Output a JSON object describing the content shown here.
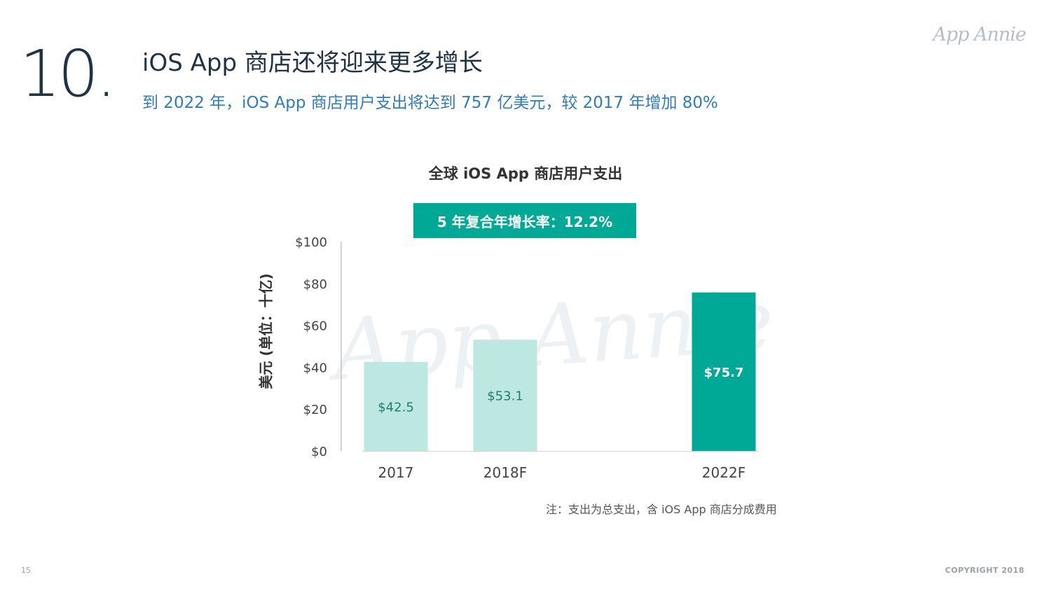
{
  "slide": {
    "number": "10.",
    "title": "iOS App 商店还将迎来更多增长",
    "subtitle": "到 2022 年，iOS App 商店用户支出将达到 757 亿美元，较 2017 年增加 80%",
    "logo": "App Annie",
    "watermark": "App Annie",
    "note": "注：支出为总支出，含 iOS App 商店分成费用",
    "page_number": "15",
    "copyright": "COPYRIGHT 2018"
  },
  "colors": {
    "title": "#1f3345",
    "subtitle": "#2f7bbf",
    "bar_light": "#bde7e1",
    "bar_dark": "#00a896",
    "label_dark_text": "#1e7f71",
    "label_light_text": "#ffffff"
  },
  "chart_data": {
    "type": "bar",
    "title": "全球 iOS App 商店用户支出",
    "callout": "5 年复合年增长率：12.2%",
    "ylabel": "美元 (单位：十亿)",
    "xlabel": "",
    "ylim": [
      0,
      100
    ],
    "yticks": [
      0,
      20,
      40,
      60,
      80,
      100
    ],
    "ytick_labels": [
      "$0",
      "$20",
      "$40",
      "$60",
      "$80",
      "$100"
    ],
    "categories": [
      "2017",
      "2018F",
      "2022F"
    ],
    "values": [
      42.5,
      53.1,
      75.7
    ],
    "data_labels": [
      "$42.5",
      "$53.1",
      "$75.7"
    ],
    "grid": false,
    "legend": "none"
  }
}
